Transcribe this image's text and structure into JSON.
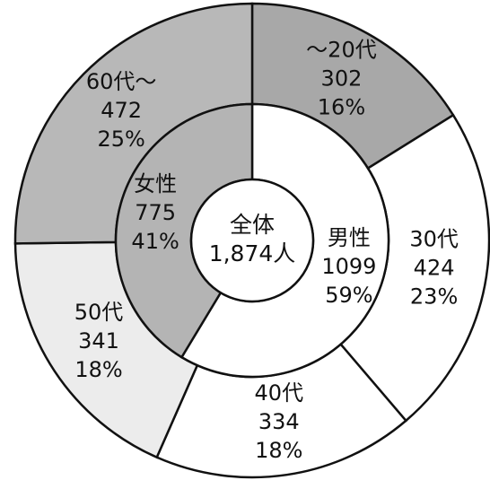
{
  "chart_data": {
    "type": "donut",
    "center_text": [
      "全体",
      "1,874人"
    ],
    "rings": [
      {
        "categories": [
          "男性",
          "女性"
        ],
        "values": [
          1099,
          775
        ],
        "percent_labels": [
          "59%",
          "41%"
        ],
        "colors": [
          "#ffffff",
          "#b4b4b4"
        ]
      },
      {
        "categories": [
          "～20代",
          "30代",
          "40代",
          "50代",
          "60代～"
        ],
        "values": [
          302,
          424,
          334,
          341,
          472
        ],
        "percent_labels": [
          "16%",
          "23%",
          "18%",
          "18%",
          "25%"
        ],
        "colors": [
          "#a8a8a8",
          "#ffffff",
          "#ffffff",
          "#ececec",
          "#b8b8b8"
        ]
      }
    ]
  }
}
